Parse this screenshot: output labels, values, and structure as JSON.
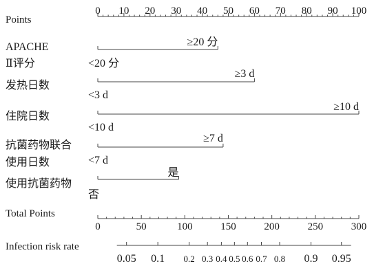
{
  "chart_data": {
    "type": "nomogram",
    "points_scale": {
      "label": "Points",
      "range": [
        0,
        100
      ],
      "ticks": [
        0,
        10,
        20,
        30,
        40,
        50,
        60,
        70,
        80,
        90,
        100
      ]
    },
    "variables": [
      {
        "label_lines": [
          "APACHE",
          "Ⅱ评分"
        ],
        "levels": [
          {
            "label": "<20 分",
            "points": 0
          },
          {
            "label": "≥20 分",
            "points": 46
          }
        ]
      },
      {
        "label_lines": [
          "发热日数"
        ],
        "levels": [
          {
            "label": "<3 d",
            "points": 0
          },
          {
            "label": "≥3 d",
            "points": 60
          }
        ]
      },
      {
        "label_lines": [
          "住院日数"
        ],
        "levels": [
          {
            "label": "<10 d",
            "points": 0
          },
          {
            "label": "≥10 d",
            "points": 100
          }
        ]
      },
      {
        "label_lines": [
          "抗菌药物联合",
          "使用日数"
        ],
        "levels": [
          {
            "label": "<7 d",
            "points": 0
          },
          {
            "label": "≥7 d",
            "points": 48
          }
        ]
      },
      {
        "label_lines": [
          "使用抗菌药物"
        ],
        "levels": [
          {
            "label": "否",
            "points": 0
          },
          {
            "label": "是",
            "points": 31
          }
        ]
      }
    ],
    "total_points_scale": {
      "label": "Total Points",
      "range": [
        0,
        300
      ],
      "ticks": [
        0,
        50,
        100,
        150,
        200,
        250,
        300
      ]
    },
    "risk_scale": {
      "label": "Infection risk rate",
      "ticks": [
        {
          "label": "0.05",
          "total_points": 33
        },
        {
          "label": "0.1",
          "total_points": 69
        },
        {
          "label": "0.2",
          "total_points": 105
        },
        {
          "label": "0.3",
          "total_points": 126
        },
        {
          "label": "0.4",
          "total_points": 142
        },
        {
          "label": "0.5",
          "total_points": 157
        },
        {
          "label": "0.6",
          "total_points": 172
        },
        {
          "label": "0.7",
          "total_points": 188
        },
        {
          "label": "0.8",
          "total_points": 209
        },
        {
          "label": "0.9",
          "total_points": 245
        },
        {
          "label": "0.95",
          "total_points": 280
        }
      ]
    }
  }
}
